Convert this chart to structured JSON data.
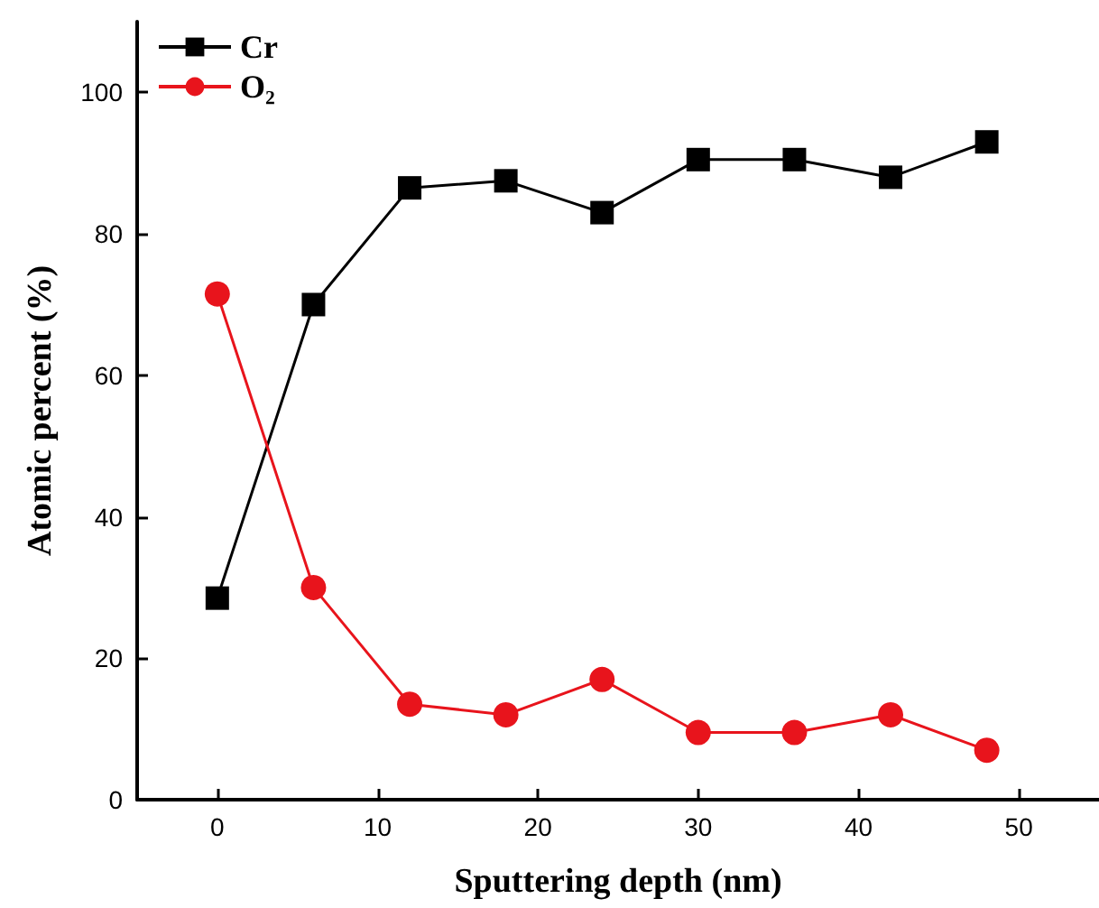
{
  "chart_data": {
    "type": "line",
    "xlabel": "Sputtering depth (nm)",
    "ylabel": "Atomic percent (%)",
    "x": [
      0,
      6,
      12,
      18,
      24,
      30,
      36,
      42,
      48
    ],
    "series": [
      {
        "name": "Cr",
        "color": "#000000",
        "marker": "square",
        "values": [
          28.5,
          70,
          86.5,
          87.5,
          83,
          90.5,
          90.5,
          88,
          93
        ]
      },
      {
        "name": "O₂",
        "color": "#e8141c",
        "marker": "circle",
        "values": [
          71.5,
          30,
          13.5,
          12,
          17,
          9.5,
          9.5,
          12,
          7
        ]
      }
    ],
    "xlim": [
      -5,
      55
    ],
    "xticks": [
      0,
      10,
      20,
      30,
      40,
      50
    ],
    "ylim": [
      0,
      110
    ],
    "yticks": [
      0,
      20,
      40,
      60,
      80,
      100
    ],
    "grid": false,
    "legend": "top left",
    "line_style": "solid"
  }
}
